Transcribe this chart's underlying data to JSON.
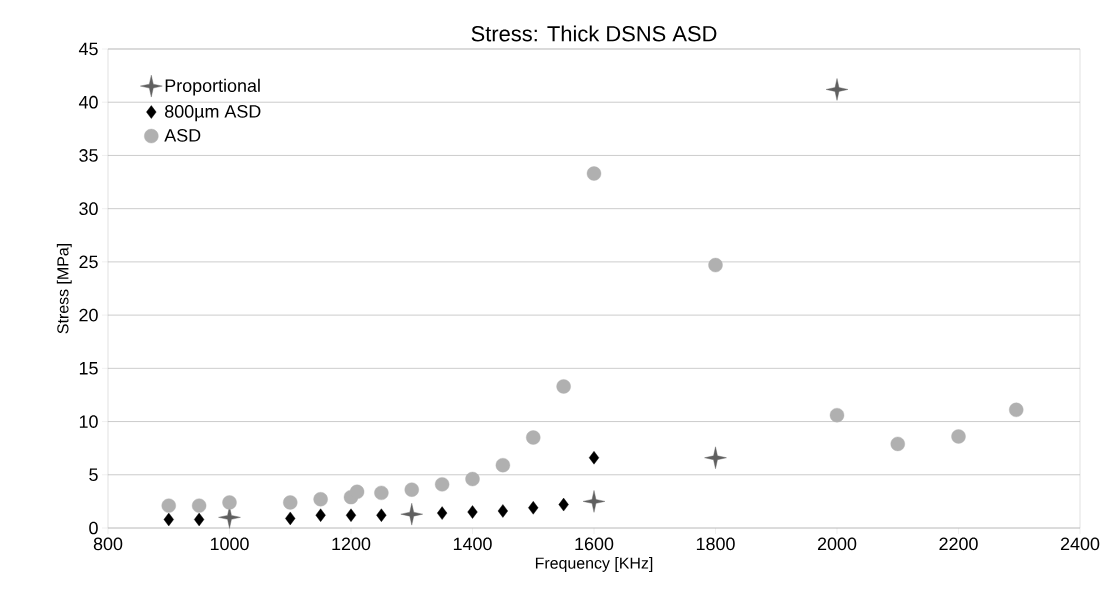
{
  "chart_data": {
    "type": "scatter",
    "title": "Stress: Thick DSNS ASD",
    "xlabel": "Frequency [KHz]",
    "ylabel": "Stress [MPa]",
    "xlim": [
      800,
      2400
    ],
    "xticks": [
      800,
      1000,
      1200,
      1400,
      1600,
      1800,
      2000,
      2200,
      2400
    ],
    "ylim": [
      0,
      45
    ],
    "yticks": [
      0,
      5,
      10,
      15,
      20,
      25,
      30,
      35,
      40,
      45
    ],
    "grid": "y",
    "legend": "top left",
    "series": [
      {
        "name": "Proportional",
        "color": "#606060",
        "marker": "star",
        "x": [
          1000,
          1300,
          1600,
          1800,
          2000
        ],
        "values": [
          1.0,
          1.3,
          2.5,
          6.6,
          41.2
        ]
      },
      {
        "name": "800µm ASD",
        "color": "#000000",
        "marker": "diamond",
        "x": [
          900,
          950,
          1100,
          1150,
          1200,
          1250,
          1350,
          1400,
          1450,
          1500,
          1550,
          1600
        ],
        "values": [
          0.8,
          0.8,
          0.9,
          1.2,
          1.2,
          1.2,
          1.4,
          1.5,
          1.6,
          1.9,
          2.2,
          6.6
        ]
      },
      {
        "name": "ASD",
        "color": "#b0b0b0",
        "marker": "circle",
        "x": [
          900,
          950,
          1000,
          1100,
          1150,
          1200,
          1210,
          1250,
          1300,
          1350,
          1400,
          1450,
          1500,
          1550,
          1600,
          1800,
          2000,
          2100,
          2200,
          2295
        ],
        "values": [
          2.1,
          2.1,
          2.4,
          2.4,
          2.7,
          2.9,
          3.4,
          3.3,
          3.6,
          4.1,
          4.6,
          5.9,
          8.5,
          13.3,
          33.3,
          24.7,
          10.6,
          7.9,
          8.6,
          11.1
        ]
      }
    ]
  }
}
